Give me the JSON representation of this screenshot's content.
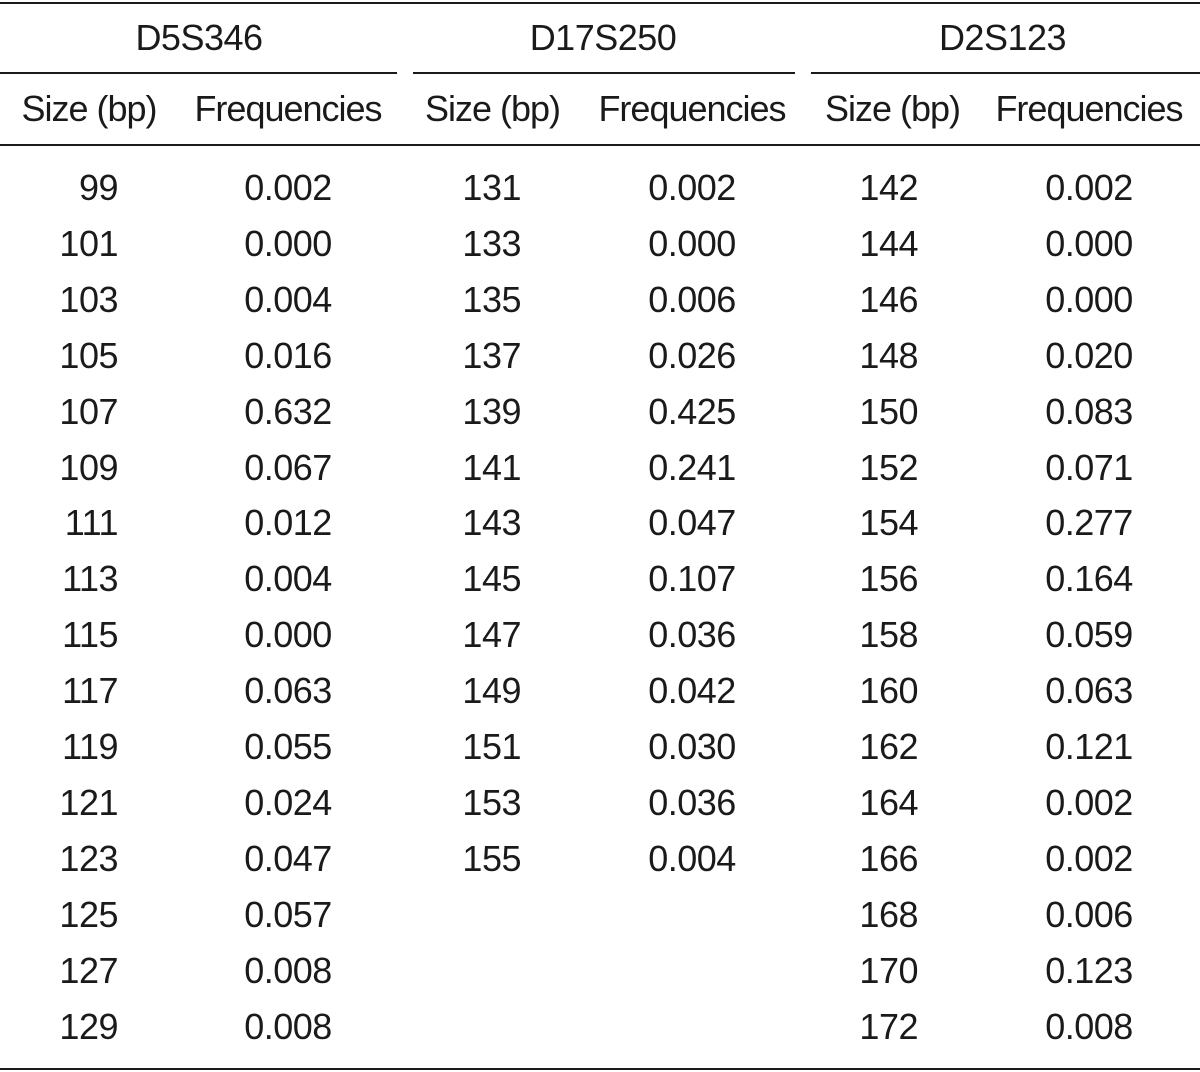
{
  "groups": [
    {
      "title": "D5S346",
      "size_header": "Size (bp)",
      "freq_header": "Frequencies",
      "rows": [
        {
          "size": "99",
          "freq": "0.002"
        },
        {
          "size": "101",
          "freq": "0.000"
        },
        {
          "size": "103",
          "freq": "0.004"
        },
        {
          "size": "105",
          "freq": "0.016"
        },
        {
          "size": "107",
          "freq": "0.632"
        },
        {
          "size": "109",
          "freq": "0.067"
        },
        {
          "size": "111",
          "freq": "0.012"
        },
        {
          "size": "113",
          "freq": "0.004"
        },
        {
          "size": "115",
          "freq": "0.000"
        },
        {
          "size": "117",
          "freq": "0.063"
        },
        {
          "size": "119",
          "freq": "0.055"
        },
        {
          "size": "121",
          "freq": "0.024"
        },
        {
          "size": "123",
          "freq": "0.047"
        },
        {
          "size": "125",
          "freq": "0.057"
        },
        {
          "size": "127",
          "freq": "0.008"
        },
        {
          "size": "129",
          "freq": "0.008"
        }
      ]
    },
    {
      "title": "D17S250",
      "size_header": "Size (bp)",
      "freq_header": "Frequencies",
      "rows": [
        {
          "size": "131",
          "freq": "0.002"
        },
        {
          "size": "133",
          "freq": "0.000"
        },
        {
          "size": "135",
          "freq": "0.006"
        },
        {
          "size": "137",
          "freq": "0.026"
        },
        {
          "size": "139",
          "freq": "0.425"
        },
        {
          "size": "141",
          "freq": "0.241"
        },
        {
          "size": "143",
          "freq": "0.047"
        },
        {
          "size": "145",
          "freq": "0.107"
        },
        {
          "size": "147",
          "freq": "0.036"
        },
        {
          "size": "149",
          "freq": "0.042"
        },
        {
          "size": "151",
          "freq": "0.030"
        },
        {
          "size": "153",
          "freq": "0.036"
        },
        {
          "size": "155",
          "freq": "0.004"
        }
      ]
    },
    {
      "title": "D2S123",
      "size_header": "Size (bp)",
      "freq_header": "Frequencies",
      "rows": [
        {
          "size": "142",
          "freq": "0.002"
        },
        {
          "size": "144",
          "freq": "0.000"
        },
        {
          "size": "146",
          "freq": "0.000"
        },
        {
          "size": "148",
          "freq": "0.020"
        },
        {
          "size": "150",
          "freq": "0.083"
        },
        {
          "size": "152",
          "freq": "0.071"
        },
        {
          "size": "154",
          "freq": "0.277"
        },
        {
          "size": "156",
          "freq": "0.164"
        },
        {
          "size": "158",
          "freq": "0.059"
        },
        {
          "size": "160",
          "freq": "0.063"
        },
        {
          "size": "162",
          "freq": "0.121"
        },
        {
          "size": "164",
          "freq": "0.002"
        },
        {
          "size": "166",
          "freq": "0.002"
        },
        {
          "size": "168",
          "freq": "0.006"
        },
        {
          "size": "170",
          "freq": "0.123"
        },
        {
          "size": "172",
          "freq": "0.008"
        }
      ]
    }
  ]
}
